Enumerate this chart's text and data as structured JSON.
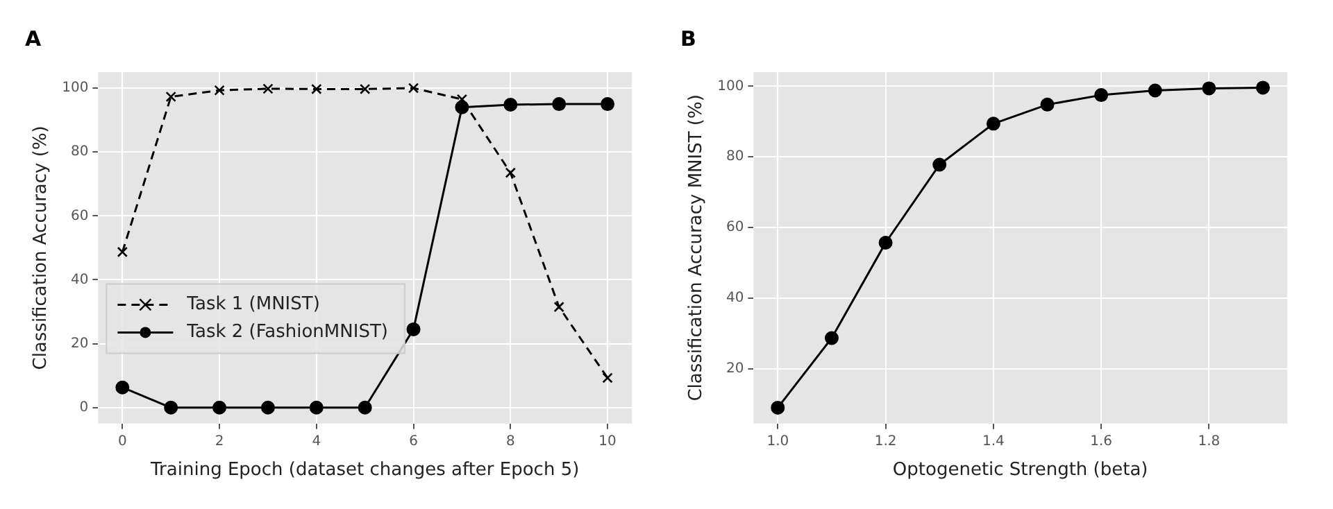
{
  "chart_data": [
    {
      "type": "line",
      "title": "A",
      "xlabel": "Training Epoch (dataset changes after Epoch 5)",
      "ylabel": "Classification Accuracy (%)",
      "x": [
        0,
        1,
        2,
        3,
        4,
        5,
        6,
        7,
        8,
        9,
        10
      ],
      "series": [
        {
          "name": "Task 1 (MNIST)",
          "color": "#000000",
          "marker": "cross",
          "line_style": "dashed",
          "values": [
            48.7,
            97.3,
            99.3,
            99.8,
            99.7,
            99.7,
            100,
            96.5,
            73.5,
            31.5,
            9.3
          ]
        },
        {
          "name": "Task 2 (FashionMNIST)",
          "color": "#000000",
          "marker": "circle",
          "line_style": "solid",
          "values": [
            6.3,
            0,
            0,
            0,
            0,
            0,
            24.5,
            94,
            94.8,
            95,
            95
          ]
        }
      ],
      "xlim": [
        -0.5,
        10.5
      ],
      "xticks": [
        0,
        2,
        4,
        6,
        8,
        10
      ],
      "ylim": [
        -5,
        105
      ],
      "yticks": [
        0,
        20,
        40,
        60,
        80,
        100
      ],
      "grid": true,
      "legend": "bottom left"
    },
    {
      "type": "line",
      "title": "B",
      "xlabel": "Optogenetic Strength (beta)",
      "ylabel": "Classification Accuracy MNIST (%)",
      "x": [
        1.0,
        1.1,
        1.2,
        1.3,
        1.4,
        1.5,
        1.6,
        1.7,
        1.8,
        1.9
      ],
      "series": [
        {
          "color": "#000000",
          "marker": "circle",
          "line_style": "solid",
          "values": [
            9.0,
            28.7,
            55.7,
            77.8,
            89.4,
            94.8,
            97.5,
            98.8,
            99.4,
            99.6
          ]
        }
      ],
      "xlim": [
        0.955,
        1.945
      ],
      "xticks": [
        {
          "value": 1,
          "label": "1.0"
        },
        1.2,
        1.4,
        1.6,
        1.8
      ],
      "ylim": [
        4.5,
        104
      ],
      "yticks": [
        20,
        40,
        60,
        80,
        100
      ],
      "grid": true
    }
  ]
}
